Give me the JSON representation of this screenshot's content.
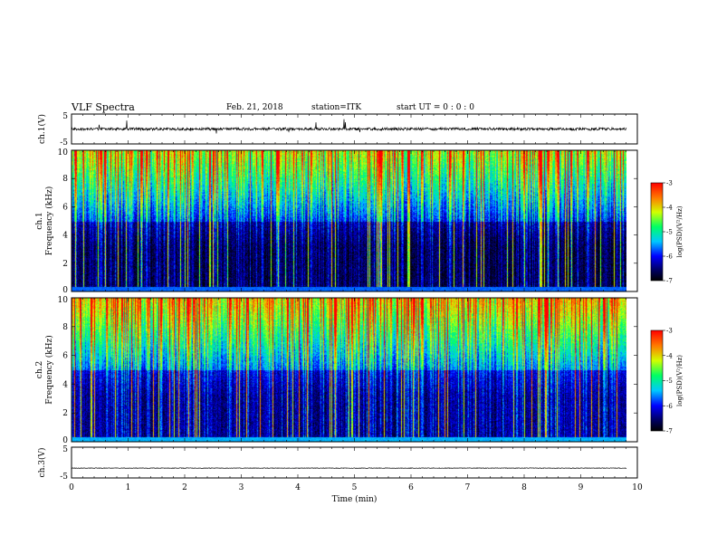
{
  "header": {
    "title": "VLF Spectra",
    "date": "Feb. 21, 2018",
    "station": "station=ITK",
    "start_time": "start  UT =  0 : 0  : 0"
  },
  "chart_data": [
    {
      "type": "line",
      "ylabel": "ch.1(V)",
      "ylim": [
        -5,
        5
      ],
      "yticks": [
        "5",
        "-5"
      ],
      "xlim": [
        0,
        10
      ],
      "baseline": 0,
      "grid": false
    },
    {
      "type": "heatmap",
      "ylabel": "ch.1\nFrequency (kHz)",
      "ylim": [
        0,
        10
      ],
      "yticks": [
        "0",
        "2",
        "4",
        "6",
        "8",
        "10"
      ],
      "xlim": [
        0,
        10
      ],
      "data_end_min": 9.8,
      "colorbar": {
        "label": "log(PSD)(V²/Hz)",
        "range": [
          -7,
          -3
        ],
        "ticks": [
          "-3",
          "-4",
          "-5",
          "-6",
          "-7"
        ]
      }
    },
    {
      "type": "heatmap",
      "ylabel": "ch.2\nFrequency (kHz)",
      "ylim": [
        0,
        10
      ],
      "yticks": [
        "0",
        "2",
        "4",
        "6",
        "8",
        "10"
      ],
      "xlim": [
        0,
        10
      ],
      "data_end_min": 9.8,
      "colorbar": {
        "label": "log(PSD)(V²/Hz)",
        "range": [
          -7,
          -3
        ],
        "ticks": [
          "-3",
          "-4",
          "-5",
          "-6",
          "-7"
        ]
      }
    },
    {
      "type": "line",
      "ylabel": "ch.3(V)",
      "ylim": [
        -5,
        5
      ],
      "yticks": [
        "5",
        "-5"
      ],
      "xlim": [
        0,
        10
      ],
      "baseline": -1.8,
      "grid": false,
      "xlabel": "Time (min)",
      "xticks": [
        "0",
        "1",
        "2",
        "3",
        "4",
        "5",
        "6",
        "7",
        "8",
        "9",
        "10"
      ]
    }
  ]
}
